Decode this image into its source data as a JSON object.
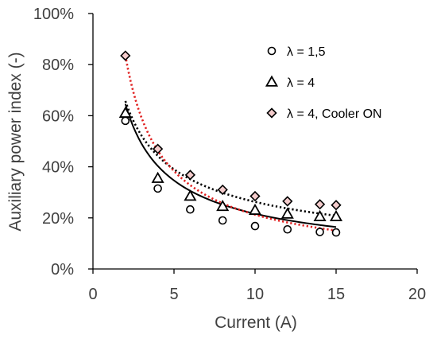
{
  "chart_data": {
    "type": "scatter",
    "xlabel": "Current (A)",
    "ylabel": "Auxiliary power index (-)",
    "xlim": [
      0,
      20
    ],
    "ylim": [
      0,
      1
    ],
    "x_ticks": [
      0,
      5,
      10,
      15,
      20
    ],
    "y_ticks": [
      0,
      0.2,
      0.4,
      0.6,
      0.8,
      1.0
    ],
    "x_tick_labels": [
      "0",
      "5",
      "10",
      "15",
      "20"
    ],
    "y_tick_labels": [
      "0%",
      "20%",
      "40%",
      "60%",
      "80%",
      "100%"
    ],
    "grid": false,
    "legend_position": "top-right",
    "series": [
      {
        "name": "λ = 1,5",
        "marker": "circle",
        "marker_fill": "#ffffff",
        "marker_edge": "#000000",
        "trendline": {
          "style": "solid",
          "color": "#000000",
          "power": [
            1.035,
            -0.68
          ]
        },
        "x": [
          2,
          4,
          6,
          8,
          10,
          12,
          14,
          15
        ],
        "y": [
          0.58,
          0.315,
          0.233,
          0.19,
          0.168,
          0.155,
          0.145,
          0.143
        ]
      },
      {
        "name": "λ = 4",
        "marker": "triangle",
        "marker_fill": "#ffffff",
        "marker_edge": "#000000",
        "trendline": {
          "style": "dotted",
          "color": "#000000",
          "power": [
            0.976,
            -0.57
          ]
        },
        "x": [
          2,
          4,
          6,
          8,
          10,
          12,
          14,
          15
        ],
        "y": [
          0.61,
          0.355,
          0.285,
          0.245,
          0.23,
          0.215,
          0.205,
          0.205
        ]
      },
      {
        "name": "λ = 4, Cooler ON",
        "marker": "diamond",
        "marker_fill": "#f4cccc",
        "marker_edge": "#000000",
        "trendline": {
          "style": "dotted",
          "color": "#e02020",
          "power": [
            1.505,
            -0.85
          ]
        },
        "x": [
          2,
          4,
          6,
          8,
          10,
          12,
          14,
          15
        ],
        "y": [
          0.835,
          0.47,
          0.368,
          0.31,
          0.285,
          0.265,
          0.253,
          0.25
        ]
      }
    ]
  }
}
